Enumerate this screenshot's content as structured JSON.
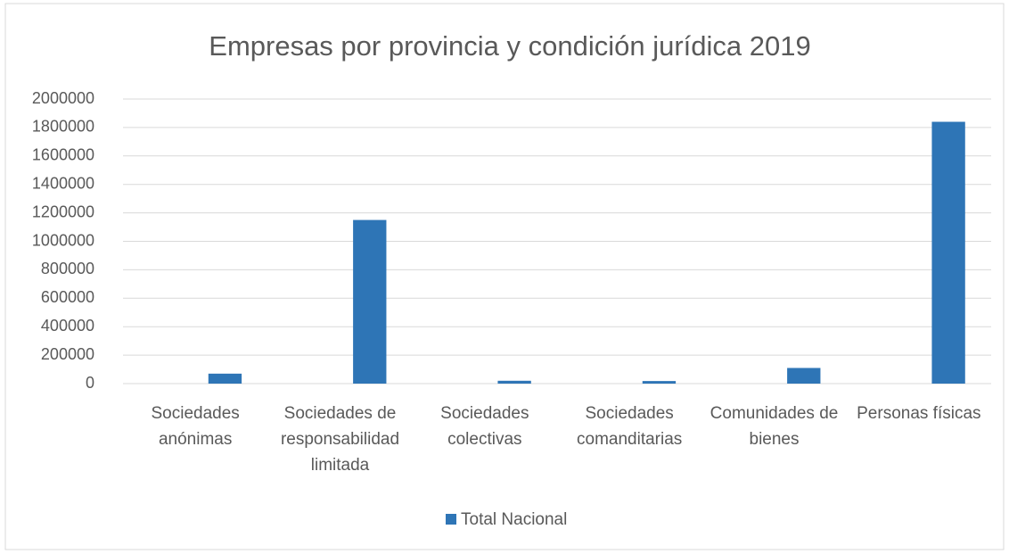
{
  "chart_data": {
    "type": "bar",
    "title": "Empresas por provincia y condición jurídica 2019",
    "categories": [
      "Sociedades anónimas",
      "Sociedades de responsabilidad limitada",
      "Sociedades colectivas",
      "Sociedades comanditarias",
      "Comunidades de bienes",
      "Personas físicas"
    ],
    "series": [
      {
        "name": "Total Nacional",
        "color": "#2e75b6",
        "values": [
          70000,
          1150000,
          20000,
          18000,
          110000,
          1840000
        ]
      }
    ],
    "ylim": [
      0,
      2000000
    ],
    "yticks": [
      0,
      200000,
      400000,
      600000,
      800000,
      1000000,
      1200000,
      1400000,
      1600000,
      1800000,
      2000000
    ],
    "grid": true,
    "legend": "bottom"
  }
}
